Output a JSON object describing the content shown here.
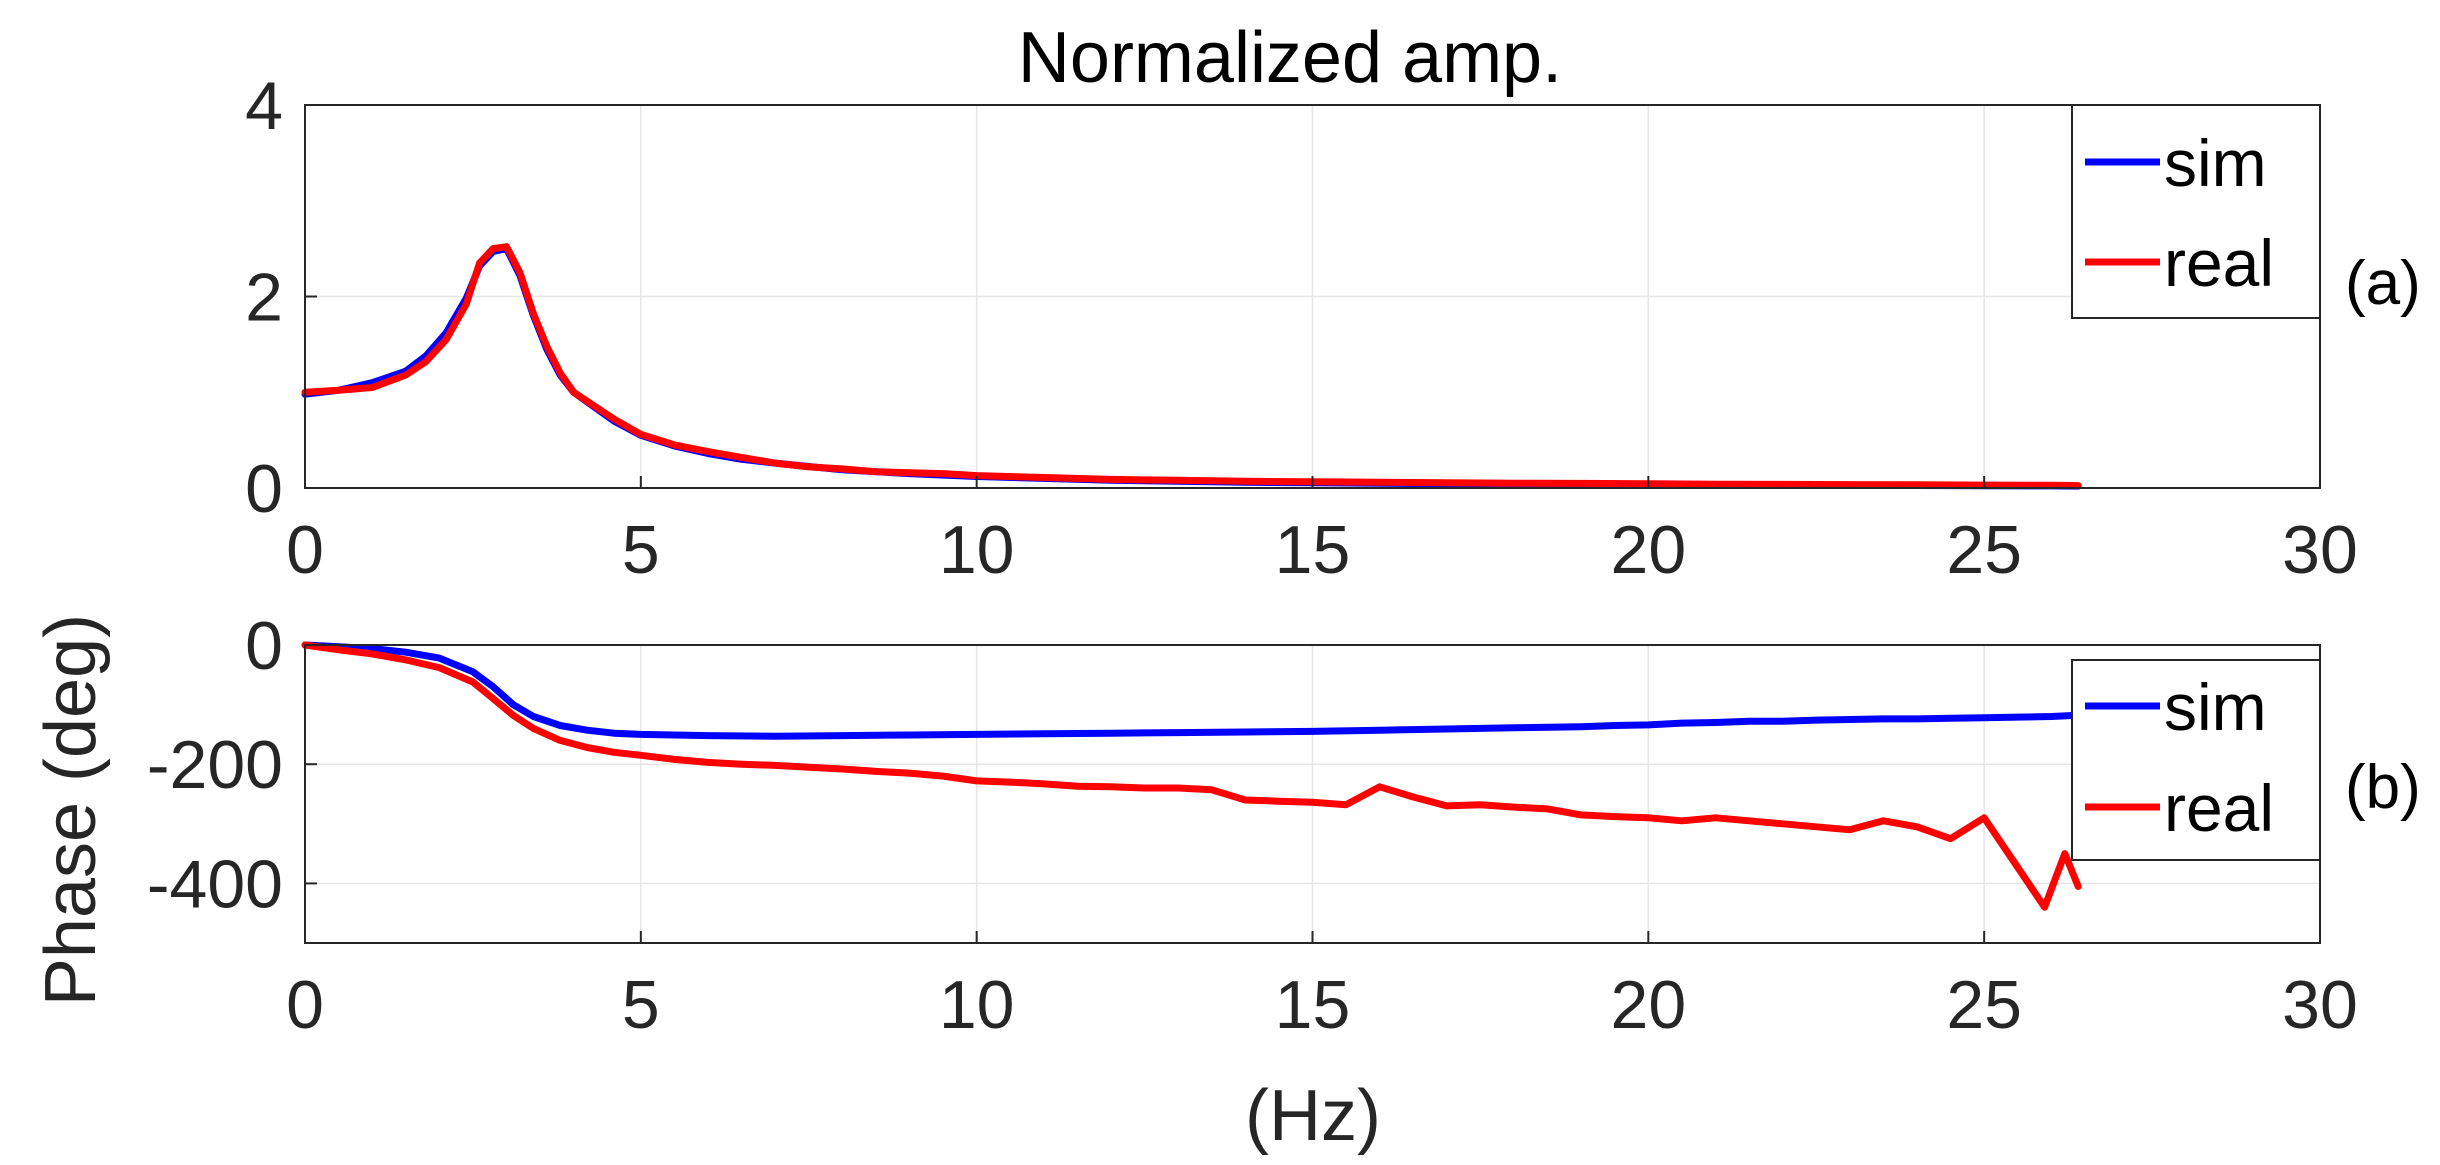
{
  "chart_data": [
    {
      "type": "line",
      "title": "Normalized amp.",
      "xlabel": "",
      "ylabel": "",
      "panel_label": "(a)",
      "xlim": [
        0,
        30
      ],
      "ylim": [
        0,
        4
      ],
      "xticks": [
        0,
        5,
        10,
        15,
        20,
        25,
        30
      ],
      "yticks": [
        0,
        2,
        4
      ],
      "grid": true,
      "legend_position": "top-right",
      "series": [
        {
          "name": "sim",
          "color": "#0000ff",
          "x": [
            0,
            0.5,
            1,
            1.5,
            1.8,
            2.1,
            2.4,
            2.6,
            2.8,
            3.0,
            3.2,
            3.4,
            3.6,
            3.8,
            4.0,
            4.3,
            4.6,
            5.0,
            5.5,
            6.0,
            6.5,
            7.0,
            8.0,
            9.0,
            10,
            11,
            12,
            13,
            14,
            15,
            16,
            17,
            18,
            19,
            20,
            21,
            22,
            23,
            24,
            25,
            26,
            26.4
          ],
          "y": [
            0.98,
            1.02,
            1.1,
            1.22,
            1.38,
            1.62,
            1.98,
            2.32,
            2.47,
            2.5,
            2.22,
            1.8,
            1.45,
            1.18,
            1.0,
            0.85,
            0.7,
            0.55,
            0.44,
            0.36,
            0.3,
            0.26,
            0.19,
            0.15,
            0.12,
            0.1,
            0.08,
            0.07,
            0.06,
            0.055,
            0.05,
            0.045,
            0.04,
            0.038,
            0.035,
            0.032,
            0.03,
            0.028,
            0.026,
            0.024,
            0.022,
            0.02
          ]
        },
        {
          "name": "real",
          "color": "#ff0000",
          "x": [
            0,
            0.5,
            1,
            1.5,
            1.8,
            2.1,
            2.4,
            2.6,
            2.8,
            3.0,
            3.2,
            3.4,
            3.6,
            3.8,
            4.0,
            4.3,
            4.6,
            5.0,
            5.5,
            6.0,
            6.5,
            7.0,
            7.5,
            8.0,
            8.5,
            9.0,
            9.5,
            10,
            11,
            12,
            13,
            14,
            15,
            16,
            17,
            18,
            19,
            20,
            21,
            22,
            23,
            24,
            25,
            26,
            26.4
          ],
          "y": [
            1.0,
            1.02,
            1.05,
            1.18,
            1.32,
            1.55,
            1.92,
            2.35,
            2.5,
            2.52,
            2.25,
            1.82,
            1.48,
            1.2,
            1.0,
            0.86,
            0.72,
            0.56,
            0.45,
            0.38,
            0.32,
            0.26,
            0.22,
            0.2,
            0.17,
            0.16,
            0.15,
            0.13,
            0.11,
            0.09,
            0.08,
            0.07,
            0.065,
            0.06,
            0.055,
            0.05,
            0.048,
            0.045,
            0.04,
            0.038,
            0.035,
            0.033,
            0.03,
            0.028,
            0.025
          ]
        }
      ]
    },
    {
      "type": "line",
      "title": "",
      "xlabel": "(Hz)",
      "ylabel": "Phase (deg)",
      "panel_label": "(b)",
      "xlim": [
        0,
        30
      ],
      "ylim": [
        -500,
        0
      ],
      "xticks": [
        0,
        5,
        10,
        15,
        20,
        25,
        30
      ],
      "yticks": [
        0,
        -200,
        -400
      ],
      "grid": true,
      "legend_position": "right",
      "series": [
        {
          "name": "sim",
          "color": "#0000ff",
          "x": [
            0,
            0.5,
            1,
            1.5,
            2.0,
            2.5,
            2.8,
            3.1,
            3.4,
            3.8,
            4.2,
            4.6,
            5,
            6,
            7,
            8,
            9,
            10,
            11,
            12,
            13,
            14,
            15,
            16,
            17,
            18,
            19,
            19.5,
            20,
            20.5,
            21,
            21.5,
            22,
            22.5,
            23,
            23.5,
            24,
            24.5,
            25,
            25.5,
            26,
            26.4
          ],
          "y": [
            0,
            -3,
            -6,
            -12,
            -22,
            -45,
            -70,
            -100,
            -120,
            -135,
            -143,
            -148,
            -150,
            -152,
            -153,
            -152,
            -151,
            -150,
            -149,
            -148,
            -147,
            -146,
            -145,
            -143,
            -141,
            -139,
            -137,
            -135,
            -134,
            -131,
            -130,
            -128,
            -128,
            -126,
            -125,
            -124,
            -124,
            -123,
            -122,
            -121,
            -120,
            -118
          ]
        },
        {
          "name": "real",
          "color": "#ff0000",
          "x": [
            0,
            0.5,
            1,
            1.5,
            2.0,
            2.5,
            2.8,
            3.1,
            3.4,
            3.8,
            4.2,
            4.6,
            5,
            5.5,
            6,
            6.5,
            7,
            7.5,
            8,
            8.5,
            9,
            9.5,
            10,
            10.5,
            11,
            11.5,
            12,
            12.5,
            13,
            13.5,
            14,
            14.5,
            15,
            15.5,
            16,
            16.5,
            17,
            17.5,
            18,
            18.5,
            19,
            19.5,
            20,
            20.5,
            21,
            21.5,
            22,
            22.5,
            23,
            23.5,
            24,
            24.5,
            25,
            25.3,
            25.6,
            25.9,
            26.2,
            26.4
          ],
          "y": [
            0,
            -8,
            -15,
            -25,
            -38,
            -62,
            -90,
            -118,
            -140,
            -160,
            -172,
            -180,
            -185,
            -192,
            -197,
            -200,
            -202,
            -205,
            -208,
            -212,
            -215,
            -220,
            -228,
            -230,
            -233,
            -237,
            -238,
            -240,
            -240,
            -243,
            -260,
            -262,
            -264,
            -268,
            -238,
            -255,
            -270,
            -268,
            -272,
            -275,
            -285,
            -288,
            -290,
            -295,
            -290,
            -295,
            -300,
            -305,
            -310,
            -295,
            -305,
            -325,
            -290,
            -340,
            -390,
            -440,
            -350,
            -405
          ]
        }
      ]
    }
  ]
}
